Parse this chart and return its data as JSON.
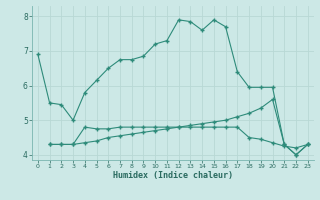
{
  "line1_x": [
    0,
    1,
    2,
    3,
    4,
    5,
    6,
    7,
    8,
    9,
    10,
    11,
    12,
    13,
    14,
    15,
    16,
    17,
    18,
    19,
    20,
    21,
    22,
    23
  ],
  "line1_y": [
    6.9,
    5.5,
    5.45,
    5.0,
    5.8,
    6.15,
    6.5,
    6.75,
    6.75,
    6.85,
    7.2,
    7.3,
    7.9,
    7.85,
    7.6,
    7.9,
    7.7,
    6.4,
    5.95,
    5.95,
    5.95,
    4.3,
    4.0,
    4.3
  ],
  "line2_x": [
    1,
    2,
    3,
    4,
    5,
    6,
    7,
    8,
    9,
    10,
    11,
    12,
    13,
    14,
    15,
    16,
    17,
    18,
    19,
    20,
    21,
    22,
    23
  ],
  "line2_y": [
    4.3,
    4.3,
    4.3,
    4.35,
    4.4,
    4.5,
    4.55,
    4.6,
    4.65,
    4.7,
    4.75,
    4.8,
    4.85,
    4.9,
    4.95,
    5.0,
    5.1,
    5.2,
    5.35,
    5.6,
    4.3,
    4.0,
    4.3
  ],
  "line3_x": [
    1,
    2,
    3,
    4,
    5,
    6,
    7,
    8,
    9,
    10,
    11,
    12,
    13,
    14,
    15,
    16,
    17,
    18,
    19,
    20,
    21,
    22,
    23
  ],
  "line3_y": [
    4.3,
    4.3,
    4.3,
    4.8,
    4.75,
    4.75,
    4.8,
    4.8,
    4.8,
    4.8,
    4.8,
    4.8,
    4.8,
    4.8,
    4.8,
    4.8,
    4.8,
    4.5,
    4.45,
    4.35,
    4.25,
    4.2,
    4.3
  ],
  "line_color": "#2e8b7a",
  "bg_color": "#cce8e6",
  "grid_major_color": "#b8d8d5",
  "grid_minor_color": "#d4eceb",
  "xlabel": "Humidex (Indice chaleur)",
  "xlim": [
    -0.5,
    23.5
  ],
  "ylim": [
    3.85,
    8.3
  ],
  "yticks": [
    4,
    5,
    6,
    7,
    8
  ],
  "xticks": [
    0,
    1,
    2,
    3,
    4,
    5,
    6,
    7,
    8,
    9,
    10,
    11,
    12,
    13,
    14,
    15,
    16,
    17,
    18,
    19,
    20,
    21,
    22,
    23
  ]
}
